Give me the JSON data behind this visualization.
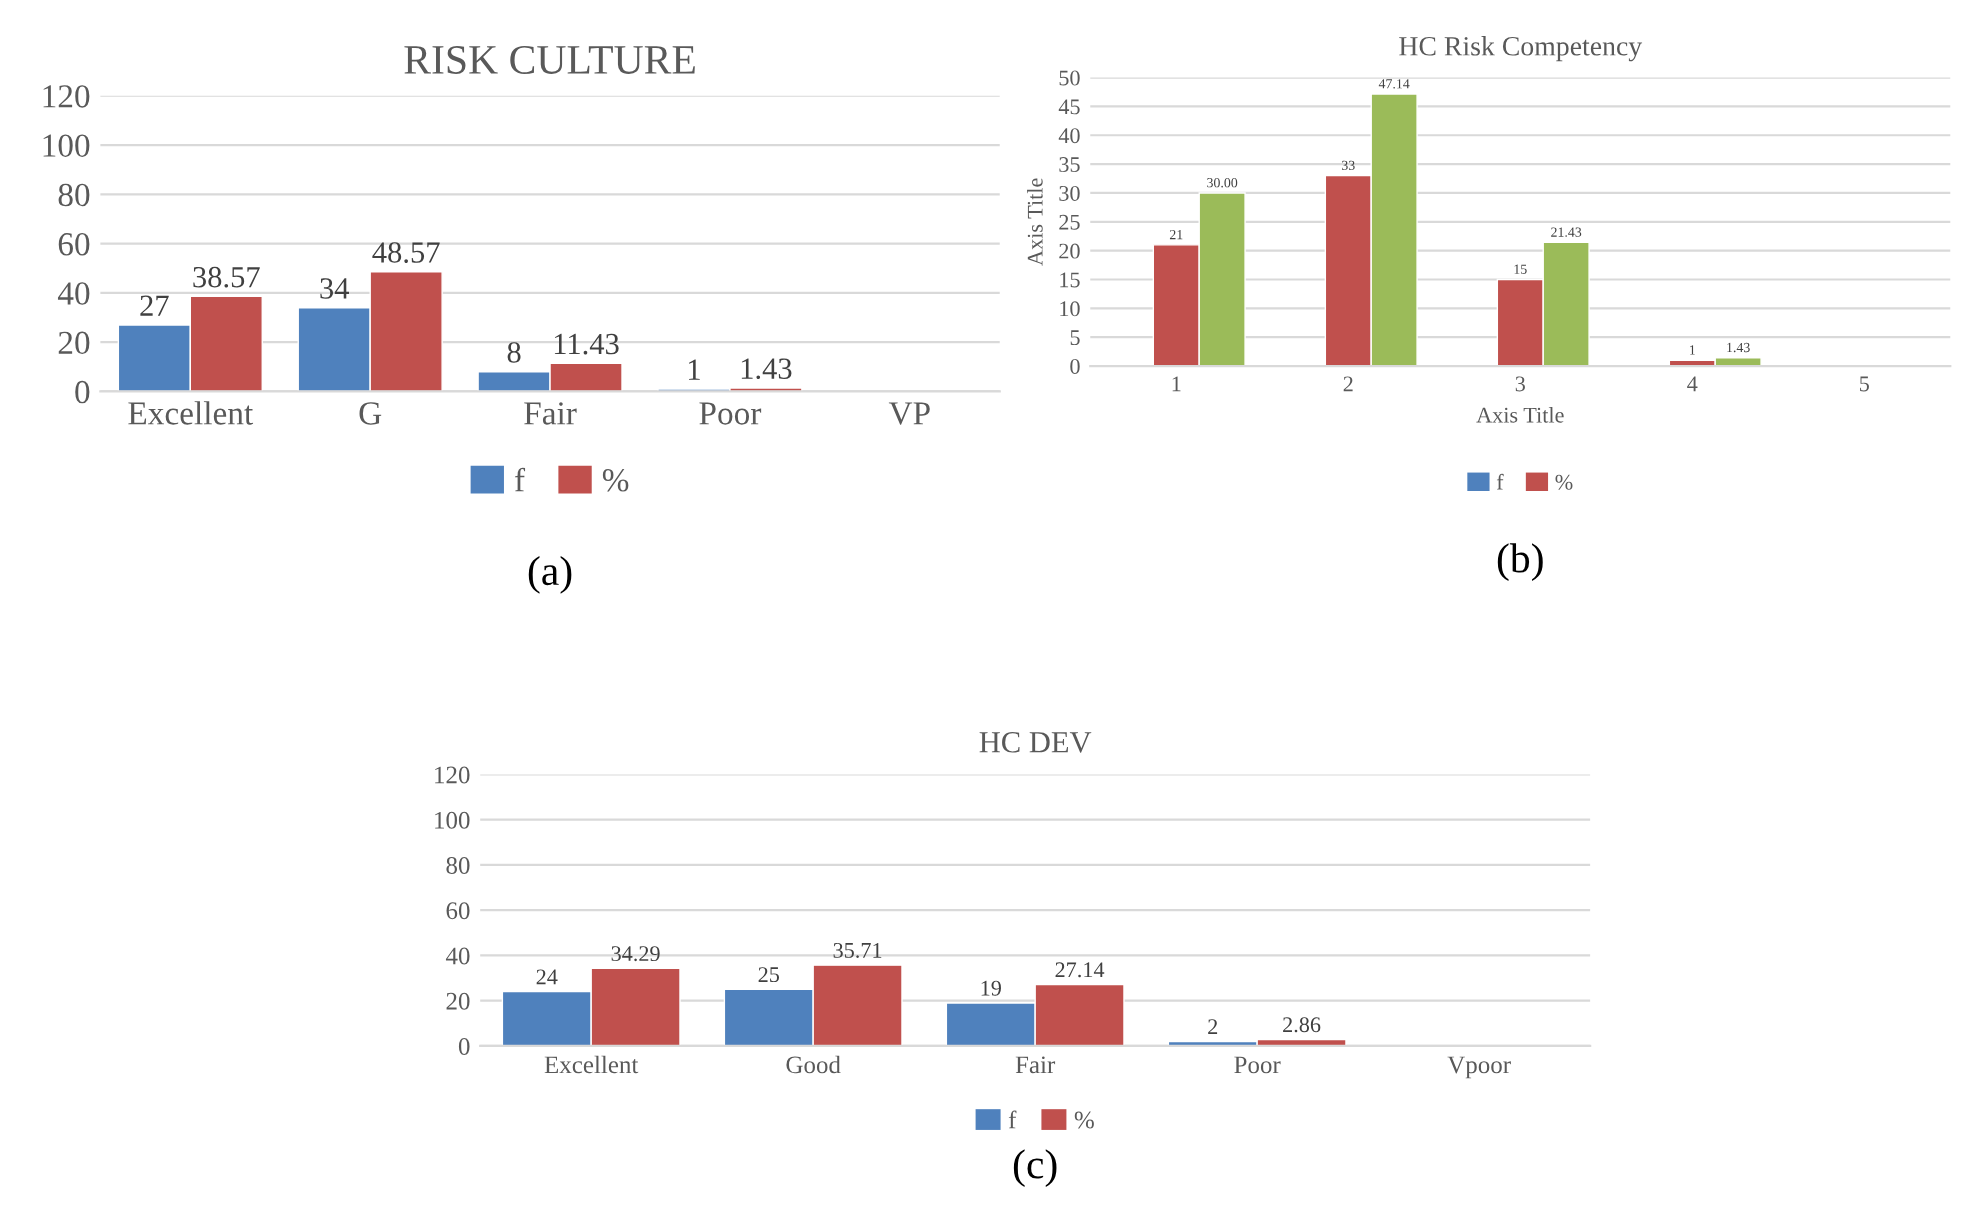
{
  "chart_data": [
    {
      "type": "bar",
      "title": "RISK CULTURE",
      "categories": [
        "Excellent",
        "G",
        "Fair",
        "Poor",
        "VP"
      ],
      "series": [
        {
          "name": "f",
          "color": "#4f81bd",
          "values": [
            27,
            34,
            8,
            1,
            null
          ]
        },
        {
          "name": "%",
          "color": "#c0504d",
          "values": [
            38.57,
            48.57,
            11.43,
            1.43,
            null
          ]
        }
      ],
      "ylim": [
        0,
        120
      ],
      "yticks": [
        0,
        20,
        40,
        60,
        80,
        100,
        120
      ],
      "grid": "y",
      "legend": "bottom",
      "data_labels": true,
      "annotations": [
        "(a)"
      ]
    },
    {
      "type": "bar",
      "title": "HC Risk Competency",
      "xlabel": "Axis Title",
      "ylabel": "Axis Title",
      "categories": [
        "1",
        "2",
        "3",
        "4",
        "5"
      ],
      "series": [
        {
          "name": "f",
          "color": "#4f81bd",
          "values": [
            null,
            null,
            null,
            null,
            null
          ]
        },
        {
          "name": "%",
          "color": "#c0504d",
          "values": [
            21,
            33,
            15,
            1,
            null
          ],
          "value_labels": [
            "21",
            "33",
            "15",
            "1",
            null
          ]
        },
        {
          "color": "#9bbb59",
          "values": [
            30.0,
            47.14,
            21.43,
            1.43,
            null
          ],
          "value_labels": [
            "30.00",
            "47.14",
            "21.43",
            "1.43",
            null
          ]
        }
      ],
      "ylim": [
        0,
        50
      ],
      "yticks": [
        0,
        5,
        10,
        15,
        20,
        25,
        30,
        35,
        40,
        45,
        50
      ],
      "grid": "y",
      "legend": "bottom",
      "annotations": [
        "(b)"
      ]
    },
    {
      "type": "bar",
      "title": "HC DEV",
      "categories": [
        "Excellent",
        "Good",
        "Fair",
        "Poor",
        "Vpoor"
      ],
      "series": [
        {
          "name": "f",
          "color": "#4f81bd",
          "values": [
            24,
            25,
            19,
            2,
            null
          ]
        },
        {
          "name": "%",
          "color": "#c0504d",
          "values": [
            34.29,
            35.71,
            27.14,
            2.86,
            null
          ]
        }
      ],
      "ylim": [
        0,
        120
      ],
      "yticks": [
        0,
        20,
        40,
        60,
        80,
        100,
        120
      ],
      "grid": "y",
      "legend": "bottom",
      "data_labels": true,
      "annotations": [
        "(c)"
      ]
    }
  ]
}
